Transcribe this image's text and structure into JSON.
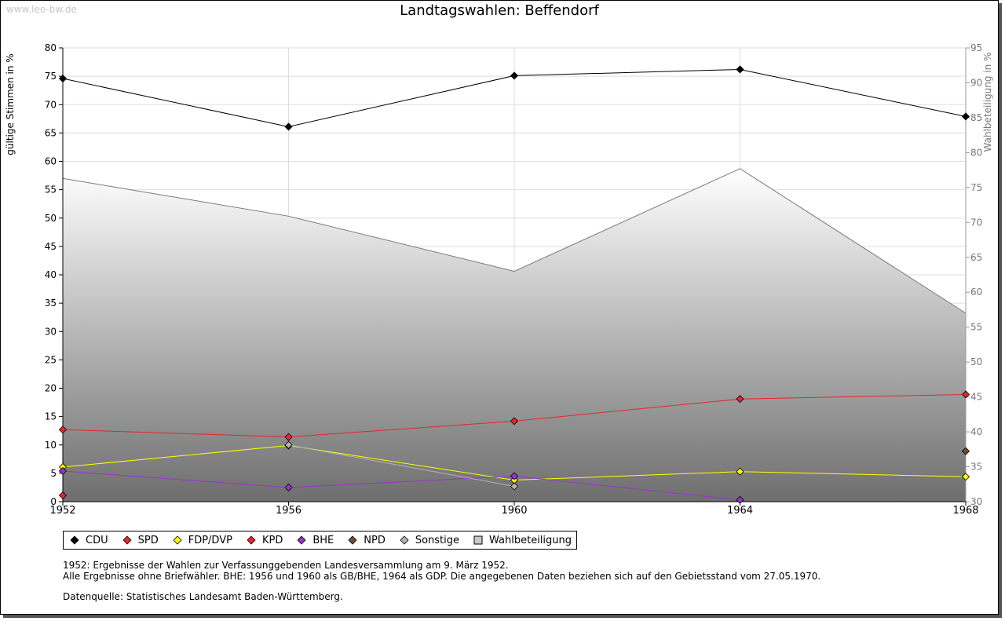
{
  "watermark": "www.leo-bw.de",
  "chart_data": {
    "type": "line",
    "title": "Landtagswahlen: Beffendorf",
    "ylabel_left": "gültige Stimmen in %",
    "ylabel_right": "Wahlbeteiligung in %",
    "xlabel": "",
    "x": [
      1952,
      1956,
      1960,
      1964,
      1968
    ],
    "y_left_lim": [
      0,
      80
    ],
    "y_left_ticks": [
      0,
      5,
      10,
      15,
      20,
      25,
      30,
      35,
      40,
      45,
      50,
      55,
      60,
      65,
      70,
      75,
      80
    ],
    "y_right_lim": [
      30,
      95
    ],
    "y_right_ticks": [
      30,
      35,
      40,
      45,
      50,
      55,
      60,
      65,
      70,
      75,
      80,
      85,
      90,
      95
    ],
    "grid": true,
    "legend_position": "bottom-left",
    "turnout": {
      "name": "Wahlbeteiligung",
      "axis": "right",
      "values": [
        76.3,
        70.9,
        63.0,
        77.7,
        57.0
      ],
      "color": "#888888"
    },
    "series": [
      {
        "name": "CDU",
        "color": "#000000",
        "values": [
          74.6,
          66.1,
          75.1,
          76.2,
          67.9
        ]
      },
      {
        "name": "SPD",
        "color": "#e8262b",
        "values": [
          12.7,
          11.4,
          14.2,
          18.1,
          18.9
        ]
      },
      {
        "name": "FDP/DVP",
        "color": "#ffff00",
        "values": [
          6.1,
          9.9,
          3.8,
          5.3,
          4.4
        ]
      },
      {
        "name": "KPD",
        "color": "#e8262b",
        "values": [
          1.1,
          null,
          null,
          null,
          null
        ]
      },
      {
        "name": "BHE",
        "color": "#9933cc",
        "values": [
          5.4,
          2.5,
          4.5,
          0.3,
          null
        ]
      },
      {
        "name": "NPD",
        "color": "#6b4e3a",
        "values": [
          null,
          null,
          null,
          null,
          8.9
        ]
      },
      {
        "name": "Sonstige",
        "color": "#b4b4b4",
        "values": [
          null,
          10.0,
          2.7,
          null,
          null
        ]
      }
    ]
  },
  "legend": {
    "items": [
      {
        "label": "CDU",
        "color": "#000000",
        "shape": "diamond"
      },
      {
        "label": "SPD",
        "color": "#e8262b",
        "shape": "diamond"
      },
      {
        "label": "FDP/DVP",
        "color": "#ffff00",
        "shape": "diamond"
      },
      {
        "label": "KPD",
        "color": "#e8262b",
        "shape": "diamond"
      },
      {
        "label": "BHE",
        "color": "#9933cc",
        "shape": "diamond"
      },
      {
        "label": "NPD",
        "color": "#6b4e3a",
        "shape": "diamond"
      },
      {
        "label": "Sonstige",
        "color": "#b4b4b4",
        "shape": "diamond"
      },
      {
        "label": "Wahlbeteiligung",
        "color": "#c8c8c8",
        "shape": "square"
      }
    ]
  },
  "notes": {
    "line1": "1952: Ergebnisse der Wahlen zur Verfassunggebenden Landesversammlung am 9. März 1952.",
    "line2": "Alle Ergebnisse ohne Briefwähler. BHE: 1956 und 1960 als GB/BHE, 1964 als GDP. Die angegebenen Daten beziehen sich auf den Gebietsstand vom 27.05.1970.",
    "source": "Datenquelle: Statistisches Landesamt Baden-Württemberg."
  }
}
